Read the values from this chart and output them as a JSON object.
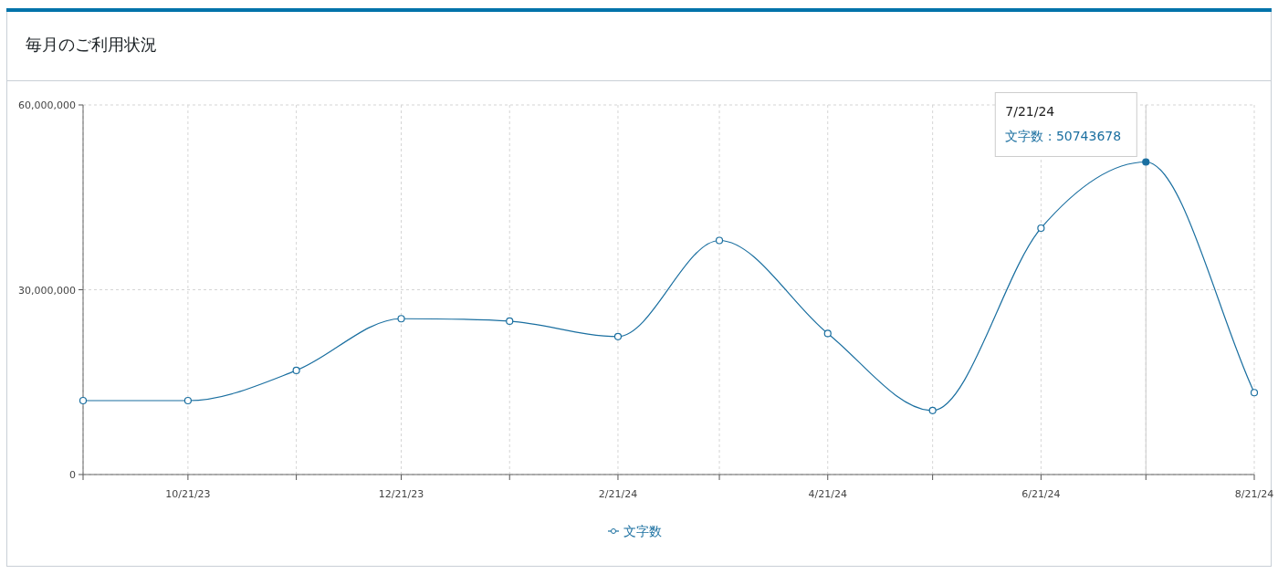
{
  "chart_data": {
    "type": "line",
    "title": "毎月のご利用状況",
    "x": [
      "2023-09-21",
      "2023-10-21",
      "2023-11-21",
      "2023-12-21",
      "2024-01-21",
      "2024-02-21",
      "2024-03-21",
      "2024-04-21",
      "2024-05-21",
      "2024-06-21",
      "2024-07-21",
      "2024-08-21"
    ],
    "series": [
      {
        "name": "文字数",
        "color": "#1a6fa0",
        "values": [
          12000000,
          12000000,
          16900000,
          25300000,
          24900000,
          22400000,
          38000000,
          22900000,
          10400000,
          40000000,
          50743678,
          13300000
        ]
      }
    ],
    "xlim": [
      "2023-09-21",
      "2024-08-21"
    ],
    "xticks": [
      {
        "value": "2023-09-21",
        "label": null
      },
      {
        "value": "2023-10-21",
        "label": "10/21/23"
      },
      {
        "value": "2023-11-21",
        "label": null
      },
      {
        "value": "2023-12-21",
        "label": "12/21/23"
      },
      {
        "value": "2024-01-21",
        "label": null
      },
      {
        "value": "2024-02-21",
        "label": "2/21/24"
      },
      {
        "value": "2024-03-21",
        "label": null
      },
      {
        "value": "2024-04-21",
        "label": "4/21/24"
      },
      {
        "value": "2024-05-21",
        "label": null
      },
      {
        "value": "2024-06-21",
        "label": "6/21/24"
      },
      {
        "value": "2024-07-21",
        "label": null
      },
      {
        "value": "2024-08-21",
        "label": "8/21/24"
      }
    ],
    "ylim": [
      0,
      60000000
    ],
    "yticks": [
      {
        "value": 0,
        "label": "0"
      },
      {
        "value": 30000000,
        "label": "30,000,000"
      },
      {
        "value": 60000000,
        "label": "60,000,000"
      }
    ],
    "grid": true,
    "legend": "bottom",
    "marker": "circle",
    "line_style": "solid",
    "ref_lines": [
      {
        "axis": "x",
        "value": "2024-07-21",
        "color": "#cccccc"
      }
    ],
    "annotations": [
      {
        "text": "7/21/24\n文字数 : 50743678",
        "x": "2024-07-21",
        "y": 50743678
      }
    ]
  }
}
